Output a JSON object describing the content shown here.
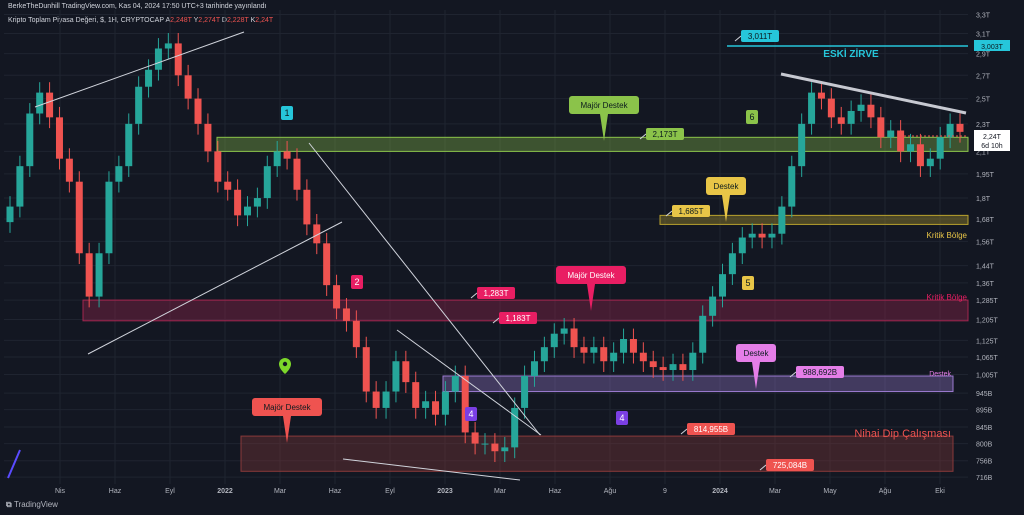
{
  "header": {
    "published": "BerkeTheDunhill TradingView.com, Kas 04, 2024 17:50 UTC+3 tarihinde yayınlandı",
    "symbol": "Kripto Toplam Piyasa Değeri, $, 1H, CRYPTOCAP",
    "ohlc": [
      {
        "k": "A",
        "v": "2,248T"
      },
      {
        "k": "Y",
        "v": "2,274T"
      },
      {
        "k": "D",
        "v": "2,228T"
      },
      {
        "k": "K",
        "v": "2,24T"
      }
    ]
  },
  "brand": {
    "name": "TradingView"
  },
  "chart_data": {
    "type": "candlestick",
    "xlabel": "",
    "ylabel": "",
    "x_ticks": [
      "Nis",
      "Haz",
      "Eyl",
      "2022",
      "Mar",
      "Haz",
      "Eyl",
      "2023",
      "Mar",
      "Haz",
      "Ağu",
      "9",
      "2024",
      "Mar",
      "May",
      "Ağu",
      "Eki"
    ],
    "y_ticks": [
      "3,3T",
      "3,1T",
      "2,9T",
      "2,7T",
      "2,5T",
      "2,3T",
      "2,1T",
      "1,95T",
      "1,8T",
      "1,68T",
      "1,56T",
      "1,44T",
      "1,36T",
      "1,285T",
      "1,205T",
      "1,125T",
      "1,065T",
      "1,005T",
      "945B",
      "895B",
      "845B",
      "800B",
      "756B",
      "716B"
    ],
    "y_scale": "log",
    "ylim_T": [
      0.7,
      3.35
    ],
    "last_price": {
      "value": "2,24T",
      "countdown": "6d 10h"
    },
    "ath_marker": "3,003T",
    "series": [
      {
        "close_T": [
          1.75,
          2.0,
          2.38,
          2.55,
          2.35,
          2.05,
          1.9,
          1.5,
          1.3,
          1.5,
          1.9,
          2.0,
          2.3,
          2.6,
          2.75,
          2.95,
          3.0,
          2.7,
          2.5,
          2.3,
          2.1,
          1.9,
          1.85,
          1.7,
          1.75,
          1.8,
          2.0,
          2.1,
          2.05,
          1.85,
          1.65,
          1.55,
          1.35,
          1.25,
          1.2,
          1.1,
          0.95,
          0.9,
          0.95,
          1.05,
          0.98,
          0.9,
          0.92,
          0.88,
          0.95,
          1.0,
          0.83,
          0.8,
          0.8,
          0.78,
          0.79,
          0.9,
          1.0,
          1.05,
          1.1,
          1.15,
          1.17,
          1.1,
          1.08,
          1.1,
          1.05,
          1.08,
          1.13,
          1.08,
          1.05,
          1.03,
          1.02,
          1.04,
          1.02,
          1.08,
          1.22,
          1.3,
          1.4,
          1.5,
          1.58,
          1.6,
          1.58,
          1.6,
          1.75,
          2.0,
          2.3,
          2.55,
          2.5,
          2.35,
          2.3,
          2.4,
          2.45,
          2.35,
          2.2,
          2.25,
          2.1,
          2.15,
          2.0,
          2.05,
          2.2,
          2.3,
          2.24
        ]
      }
    ],
    "trendlines": [
      {
        "from": [
          "2021-01",
          2.6
        ],
        "to": [
          "2021-10",
          3.35
        ]
      },
      {
        "from": [
          "2021-08",
          2.15
        ],
        "to": [
          "2022-05",
          0.74
        ]
      },
      {
        "from": [
          "2021-04",
          1.1
        ],
        "to": [
          "2021-12",
          1.62
        ]
      },
      {
        "from": [
          "2022-05",
          1.18
        ],
        "to": [
          "2022-12",
          0.85
        ]
      },
      {
        "from": [
          "2022-03",
          0.76
        ],
        "to": [
          "2022-12",
          0.716
        ]
      },
      {
        "from": [
          "2024-02",
          2.7
        ],
        "to": [
          "2024-10",
          2.38
        ]
      }
    ],
    "zones": [
      {
        "label": "Majör Destek",
        "top_T": 2.2,
        "bottom_T": 2.1,
        "color": "#8bc34a"
      },
      {
        "label": "Kritik Bölge",
        "top_T": 1.7,
        "bottom_T": 1.65,
        "color": "#b8a12e"
      },
      {
        "label": "Kritik Bölge",
        "top_T": 1.285,
        "bottom_T": 1.2,
        "color": "#a3264f"
      },
      {
        "label": "Destek",
        "top_T": 1.0,
        "bottom_T": 0.95,
        "color": "#9c7bd1"
      },
      {
        "label": "Nihai Dip Çalışması",
        "top_T": 0.82,
        "bottom_T": 0.73,
        "color": "#8a3a3a"
      }
    ],
    "level_labels": [
      "3,011T",
      "2,173T",
      "1,685T",
      "1,283T",
      "1,183T",
      "988,692B",
      "814,955B",
      "725,084B"
    ],
    "callouts": [
      "Majör Destek",
      "Destek",
      "Majör Destek",
      "Destek",
      "Majör Destek"
    ],
    "annotations": [
      "ESKİ ZİRVE",
      "Kritik Bölge",
      "Kritik Bölge",
      "Destek",
      "Nihai Dip Çalışması"
    ],
    "wave_numbers": [
      "1",
      "2",
      "4",
      "4",
      "5",
      "6"
    ],
    "colors": {
      "background": "#131722",
      "up": "#26a69a",
      "down": "#ef5350",
      "grid": "#1f2430",
      "axis_text": "#b2b5be"
    }
  }
}
